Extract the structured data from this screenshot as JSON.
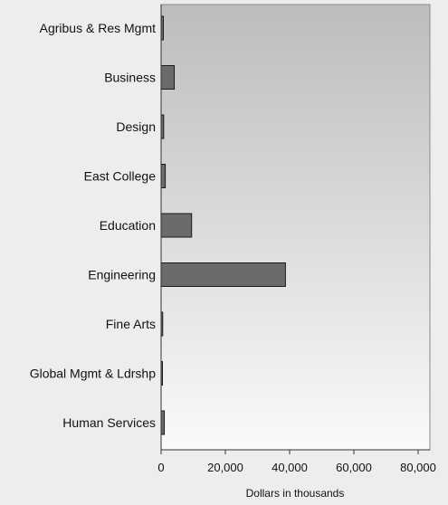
{
  "chart_data": {
    "type": "bar",
    "orientation": "horizontal",
    "categories": [
      "Agribus & Res Mgmt",
      "Business",
      "Design",
      "East College",
      "Education",
      "Engineering",
      "Fine Arts",
      "Global Mgmt & Ldrshp",
      "Human Services"
    ],
    "values": [
      700,
      4100,
      800,
      1300,
      9500,
      38700,
      500,
      300,
      1000
    ],
    "xlabel": "Dollars in thousands",
    "ylabel": "",
    "title": "",
    "xlim": [
      0,
      80000
    ],
    "xticks": [
      0,
      20000,
      40000,
      60000,
      80000
    ],
    "xtick_labels": [
      "0",
      "20,000",
      "40,000",
      "60,000",
      "80,000"
    ],
    "grid": false,
    "colors": {
      "bar_fill": "#6b6b6b",
      "bar_stroke": "#1a1a1a",
      "plot_top": "#bdbdbd",
      "plot_bottom": "#fafafa",
      "page_bg": "#ededed"
    }
  }
}
